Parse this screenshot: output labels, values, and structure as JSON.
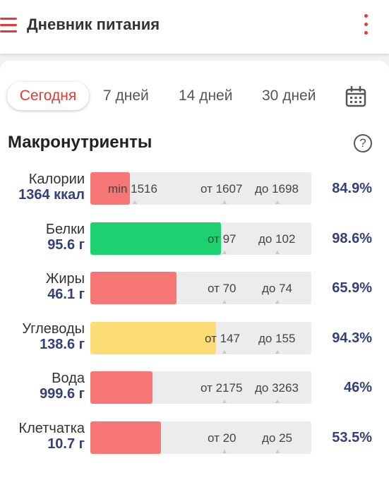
{
  "header": {
    "title": "Дневник питания",
    "accent_color": "#e53935",
    "menu_icon": "hamburger-menu-icon",
    "overflow_icon": "more-vertical-icon"
  },
  "period_tabs": [
    {
      "label": "Сегодня",
      "active": true
    },
    {
      "label": "7 дней",
      "active": false
    },
    {
      "label": "14 дней",
      "active": false
    },
    {
      "label": "30 дней",
      "active": false
    }
  ],
  "calendar_icon": "calendar-icon",
  "section": {
    "title": "Макронутриенты",
    "help_icon": "?"
  },
  "rows": [
    {
      "name": "Калории",
      "value": "1364 ккал",
      "progress": 0.18,
      "color": "#f67676",
      "labels": [
        {
          "text": "min 1516"
        },
        {
          "text": "от 1607"
        },
        {
          "text": "до 1698"
        }
      ],
      "percent": "84.9%"
    },
    {
      "name": "Белки",
      "value": "95.6 г",
      "progress": 0.59,
      "color": "#1ed170",
      "labels": [
        {
          "text": "от 97"
        },
        {
          "text": "до 102"
        }
      ],
      "percent": "98.6%"
    },
    {
      "name": "Жиры",
      "value": "46.1 г",
      "progress": 0.39,
      "color": "#f67676",
      "labels": [
        {
          "text": "от 70"
        },
        {
          "text": "до 74"
        }
      ],
      "percent": "65.9%"
    },
    {
      "name": "Углеводы",
      "value": "138.6 г",
      "progress": 0.57,
      "color": "#fbdd73",
      "labels": [
        {
          "text": "от 147"
        },
        {
          "text": "до 155"
        }
      ],
      "percent": "94.3%"
    },
    {
      "name": "Вода",
      "value": "999.6 г",
      "progress": 0.28,
      "color": "#f67676",
      "labels": [
        {
          "text": "от 2175"
        },
        {
          "text": "до 3263"
        }
      ],
      "percent": "46%"
    },
    {
      "name": "Клетчатка",
      "value": "10.7 г",
      "progress": 0.32,
      "color": "#f67676",
      "labels": [
        {
          "text": "от 20"
        },
        {
          "text": "до 25"
        }
      ],
      "percent": "53.5%"
    }
  ]
}
